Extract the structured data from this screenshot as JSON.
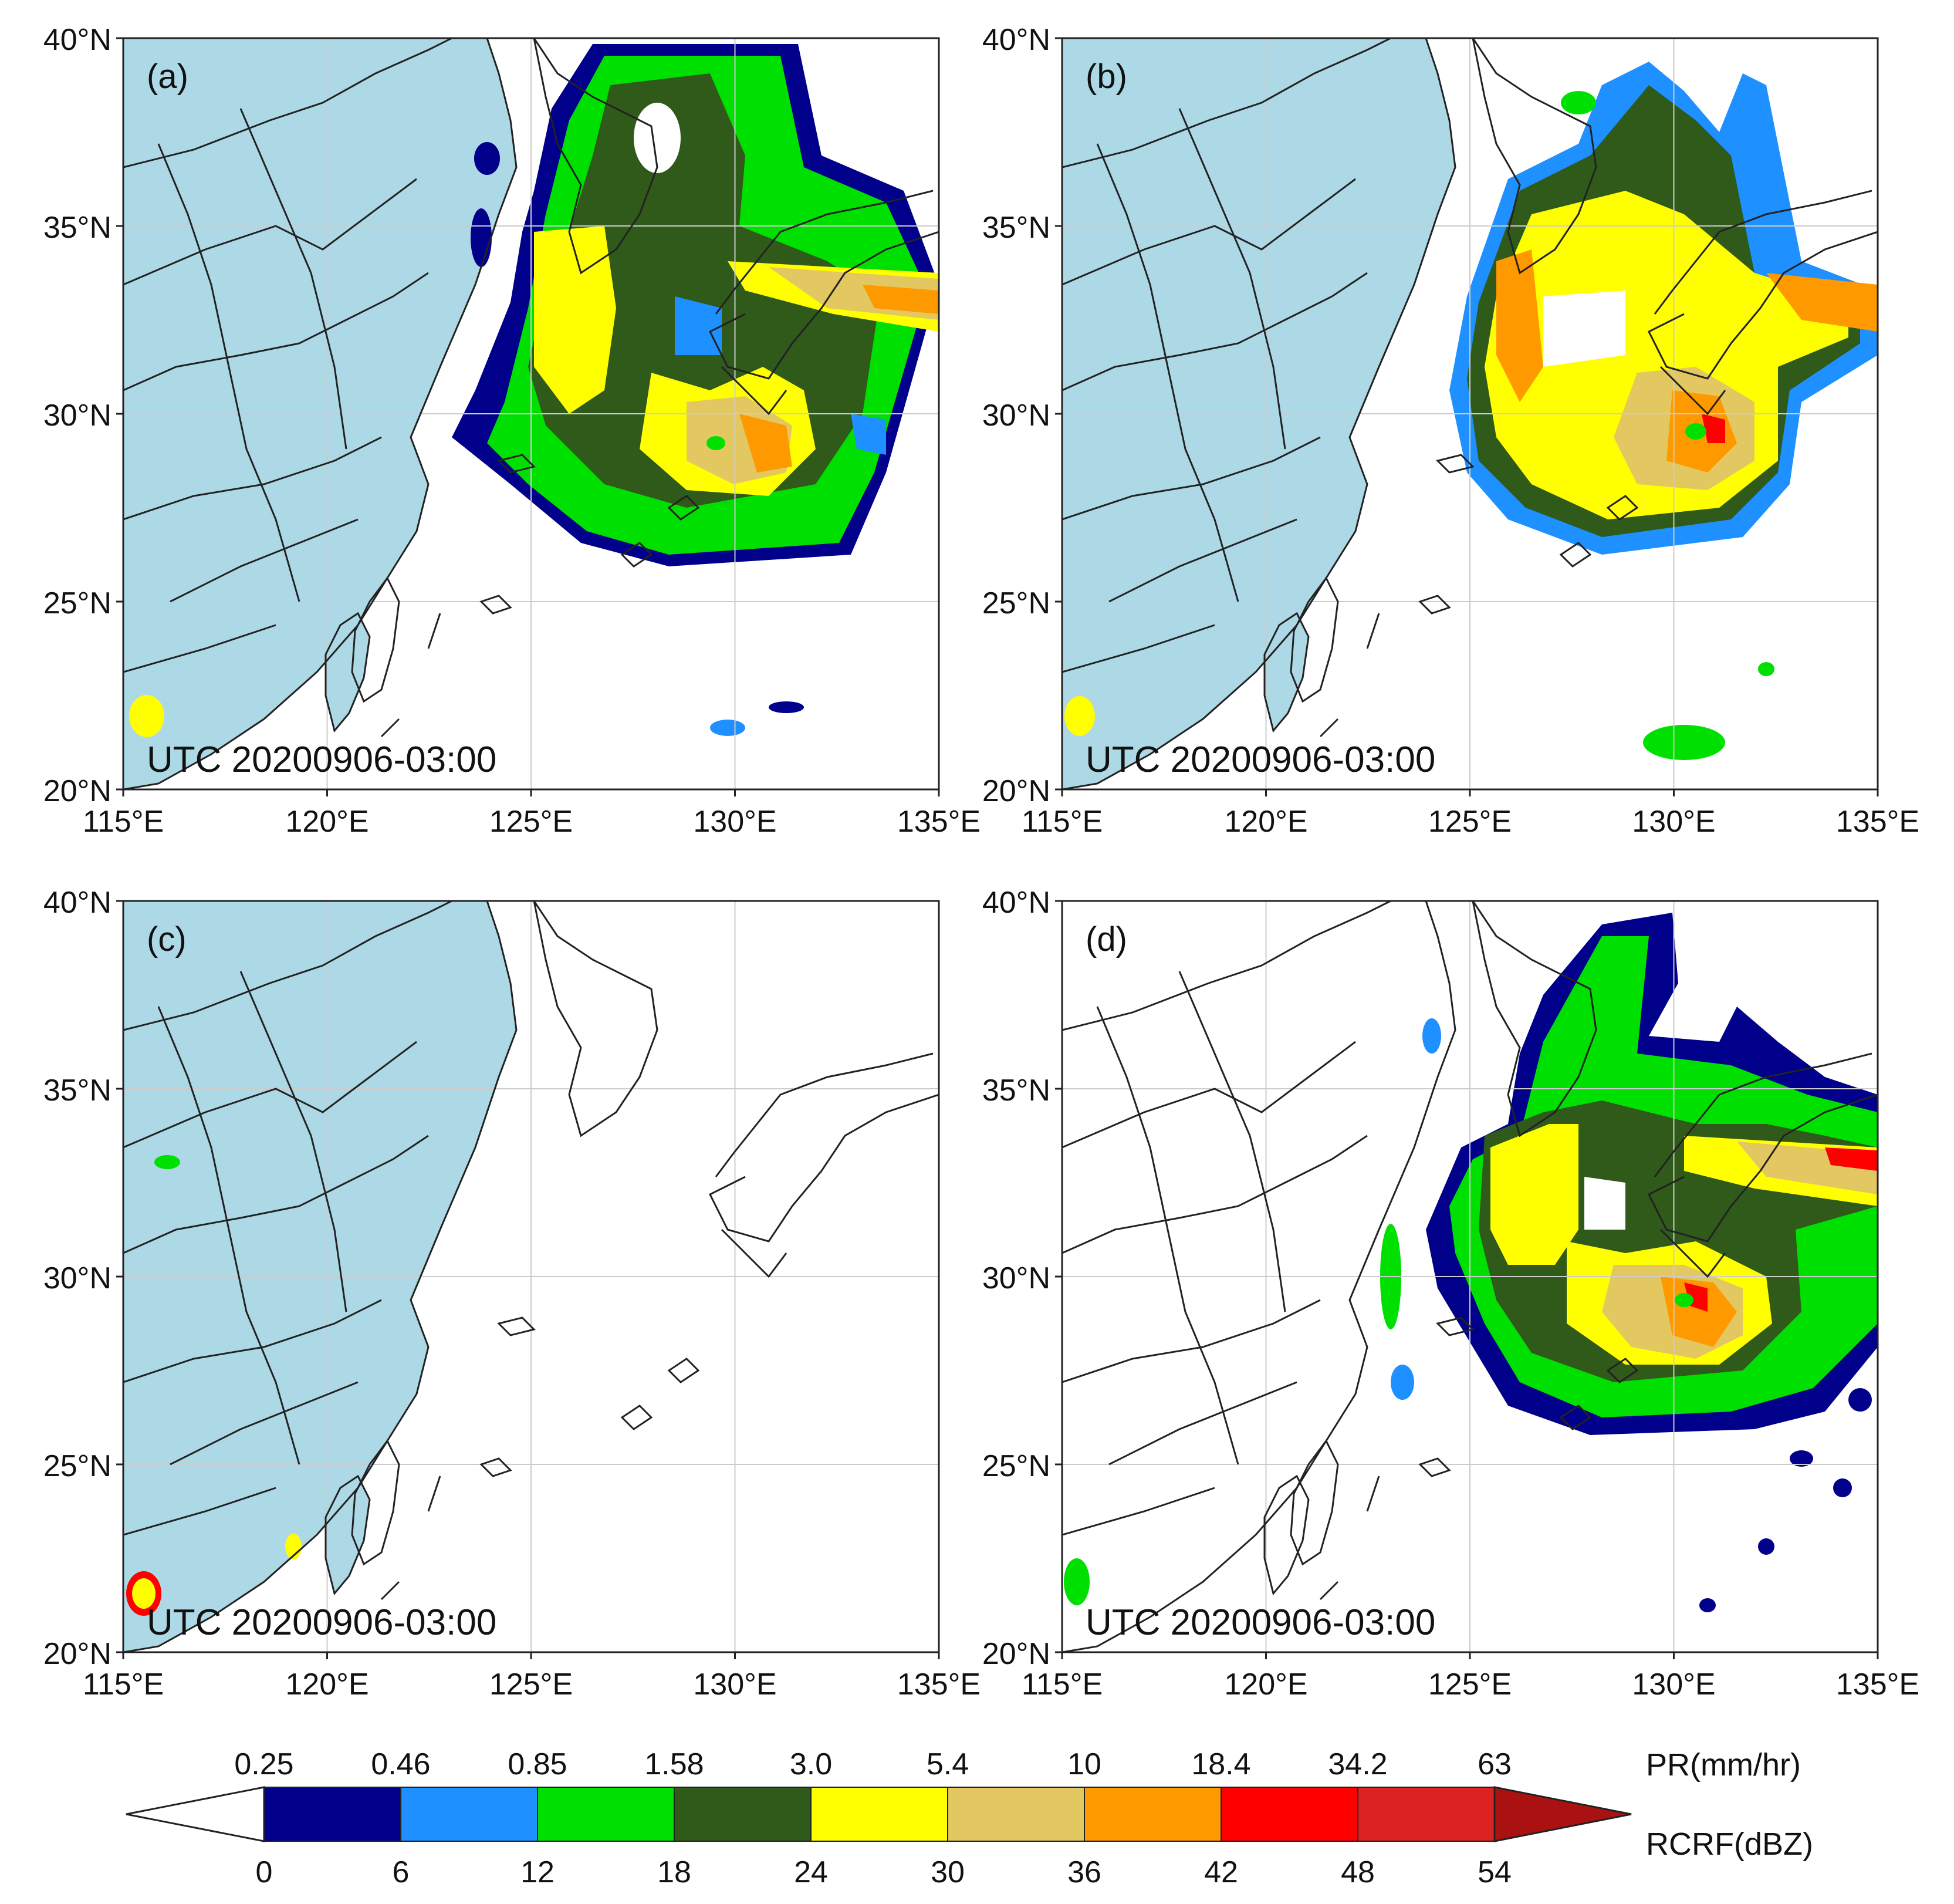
{
  "figure": {
    "panels": [
      {
        "id": "a",
        "label": "(a)",
        "timestamp": "UTC 20200906-03:00"
      },
      {
        "id": "b",
        "label": "(b)",
        "timestamp": "UTC 20200906-03:00"
      },
      {
        "id": "c",
        "label": "(c)",
        "timestamp": "UTC 20200906-03:00"
      },
      {
        "id": "d",
        "label": "(d)",
        "timestamp": "UTC 20200906-03:00"
      }
    ],
    "lon_ticks": [
      "115°E",
      "120°E",
      "125°E",
      "130°E",
      "135°E"
    ],
    "lat_ticks": [
      "40°N",
      "35°N",
      "30°N",
      "25°N",
      "20°N"
    ],
    "lon_range": [
      115,
      135
    ],
    "lat_range": [
      20,
      40
    ],
    "colors": {
      "land_fill": "#ADD8E6",
      "coast_line": "#222222",
      "grid_line": "#cccccc"
    }
  },
  "colorbar": {
    "pr_label": "PR(mm/hr)",
    "rcrf_label": "RCRF(dBZ)",
    "pr_ticks": [
      "0.25",
      "0.46",
      "0.85",
      "1.58",
      "3.0",
      "5.4",
      "10",
      "18.4",
      "34.2",
      "63"
    ],
    "rcrf_ticks": [
      "0",
      "6",
      "12",
      "18",
      "24",
      "30",
      "36",
      "42",
      "48",
      "54"
    ],
    "colors": [
      "#ffffff",
      "#00008B",
      "#1E90FF",
      "#00E000",
      "#2F5A1A",
      "#FFFF00",
      "#E3C760",
      "#FF9900",
      "#FF0000",
      "#DD2222",
      "#AA1111"
    ]
  }
}
